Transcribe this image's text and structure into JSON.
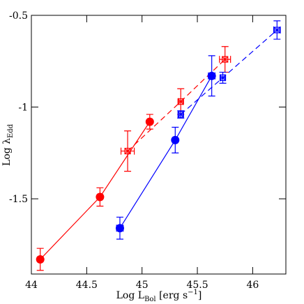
{
  "chart_data": {
    "type": "scatter",
    "x_label": {
      "main": "Log L",
      "sub": "Bol",
      "rest": " [erg s",
      "sup": "−1",
      "end": "]"
    },
    "y_label": {
      "main": "Log λ",
      "sub": "Edd"
    },
    "xlim": [
      44,
      46.3
    ],
    "ylim": [
      -1.91,
      -0.5
    ],
    "xticks": [
      44,
      44.5,
      45,
      45.5,
      46
    ],
    "yticks": [
      -1.5,
      -1,
      -0.5
    ],
    "series": [
      {
        "color": "#ff0000",
        "marker": "filled-circle",
        "linestyle": "solid",
        "x": [
          44.08,
          44.62,
          45.07
        ],
        "values": [
          -1.83,
          -1.49,
          -1.08
        ],
        "yerr": [
          0.06,
          0.05,
          0.04
        ],
        "xerr": [
          0.02,
          0.02,
          0.02
        ]
      },
      {
        "color": "#ff0000",
        "marker": "open-square",
        "linestyle": "dashed",
        "x": [
          44.87,
          45.35,
          45.75
        ],
        "values": [
          -1.24,
          -0.97,
          -0.74
        ],
        "yerr": [
          0.11,
          0.07,
          0.07
        ],
        "xerr": [
          0.06,
          0.02,
          0.05
        ]
      },
      {
        "color": "#0000ff",
        "marker": "filled-circle",
        "linestyle": "solid",
        "x": [
          44.8,
          45.3,
          45.63
        ],
        "values": [
          -1.66,
          -1.18,
          -0.83
        ],
        "yerr": [
          0.06,
          0.07,
          0.11
        ],
        "xerr": [
          0.03,
          0.02,
          0.03
        ]
      },
      {
        "color": "#0000ff",
        "marker": "open-square",
        "linestyle": "dashed",
        "x": [
          45.35,
          45.73,
          46.22
        ],
        "values": [
          -1.04,
          -0.84,
          -0.58
        ],
        "yerr": [
          0.02,
          0.03,
          0.05
        ],
        "xerr": [
          0.02,
          0.02,
          0.03
        ]
      }
    ]
  }
}
